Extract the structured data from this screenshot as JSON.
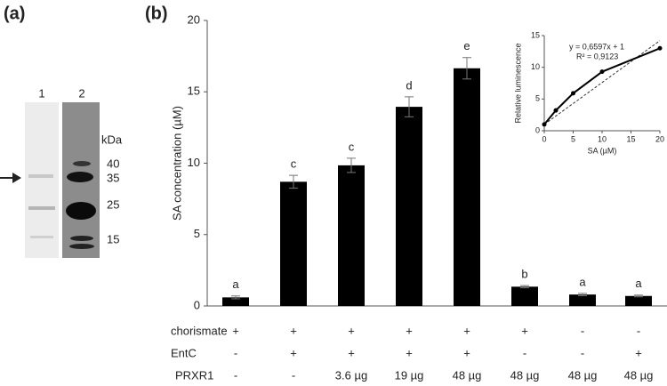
{
  "panel_a": {
    "label": "(a)",
    "lanes": [
      "1",
      "2"
    ],
    "unit": "kDa",
    "markers": [
      "40",
      "35",
      "25",
      "15"
    ]
  },
  "chart_data": [
    {
      "type": "bar",
      "label": "(b)",
      "ylabel": "SA concentration (µM)",
      "categories": [
        null,
        null,
        null,
        null,
        null,
        null,
        null,
        null
      ],
      "values": [
        0.6,
        8.7,
        9.85,
        13.95,
        16.65,
        1.35,
        0.8,
        0.7
      ],
      "errors": [
        0.1,
        0.45,
        0.5,
        0.7,
        0.75,
        0.08,
        0.08,
        0.06
      ],
      "annotations": [
        "a",
        "c",
        "c",
        "d",
        "e",
        "b",
        "a",
        "a"
      ],
      "color": "#000000",
      "ylim": [
        0,
        20
      ],
      "yticks": [
        0,
        5,
        10,
        15,
        20
      ],
      "conditions": [
        {
          "label": "chorismate",
          "values": [
            "+",
            "+",
            "+",
            "+",
            "+",
            "+",
            "-",
            "-"
          ]
        },
        {
          "label": "EntC",
          "values": [
            "-",
            "+",
            "+",
            "+",
            "+",
            "-",
            "-",
            "+"
          ]
        },
        {
          "label": "PRXR1",
          "values": [
            "-",
            "-",
            "3.6 µg",
            "19 µg",
            "48 µg",
            "48 µg",
            "48 µg",
            "48 µg"
          ]
        }
      ]
    },
    {
      "type": "line",
      "xlabel": "SA (µM)",
      "ylabel": "Relative luminescence",
      "x": [
        0,
        2,
        5,
        10,
        20
      ],
      "values": [
        1,
        3.2,
        5.9,
        9.3,
        13
      ],
      "color": "#000000",
      "xlim": [
        0,
        20
      ],
      "xticks": [
        0,
        5,
        10,
        15,
        20
      ],
      "ylim": [
        0,
        15
      ],
      "yticks": [
        0,
        5,
        10,
        15
      ],
      "equation": "y = 0,6597x  + 1",
      "r2": "R² = 0,9123",
      "fit": {
        "slope": 0.6597,
        "intercept": 1
      }
    }
  ]
}
